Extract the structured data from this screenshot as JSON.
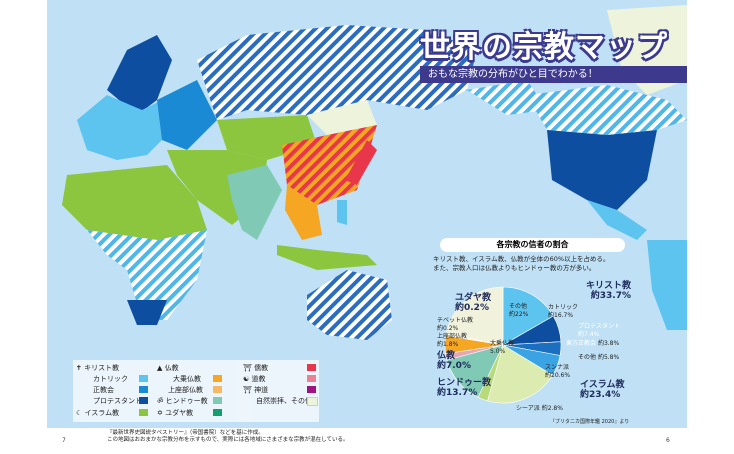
{
  "title": "世界の宗教マップ",
  "subtitle": "おもな宗教の分布がひと目でわかる！",
  "legend": {
    "christianity": {
      "label": "キリスト教",
      "icon": "cross-icon",
      "items": [
        {
          "label": "カトリック",
          "color": "#5cc4ef"
        },
        {
          "label": "正教会",
          "color": "#1a8ad4"
        },
        {
          "label": "プロテスタント",
          "color": "#0d4ea0"
        }
      ]
    },
    "islam": {
      "label": "イスラム教",
      "icon": "crescent-icon",
      "color": "#8cc63f"
    },
    "buddhism": {
      "label": "仏教",
      "icon": "stupa-icon",
      "items": [
        {
          "label": "大乗仏教",
          "color": "#f5a623"
        },
        {
          "label": "上座部仏教",
          "color": "#f7b866"
        }
      ]
    },
    "hinduism": {
      "label": "ヒンドゥー教",
      "icon": "om-icon",
      "color": "#7fc9b5"
    },
    "judaism": {
      "label": "ユダヤ教",
      "icon": "star-of-david-icon",
      "color": "#14a06e"
    },
    "confucianism": {
      "label": "儒教",
      "icon": "temple-icon",
      "color": "#e8374a"
    },
    "taoism": {
      "label": "道教",
      "icon": "yin-yang-icon",
      "color": "#ee8095"
    },
    "shinto": {
      "label": "神道",
      "icon": "torii-icon",
      "color": "#a0127f"
    },
    "other": {
      "label": "自然崇拝、その他",
      "color": "#eef4dc"
    }
  },
  "pie": {
    "heading": "各宗教の信者の割合",
    "note1": "キリスト教、イスラム教、仏教が全体の60%以上を占める。",
    "note2": "また、宗教人口は仏教よりもヒンドゥー教の方が多い。",
    "source": "『ブリタニカ国際年鑑 2020』より",
    "groups": [
      {
        "name": "キリスト教",
        "value": "約33.7%"
      },
      {
        "name": "イスラム教",
        "value": "約23.4%"
      },
      {
        "name": "ヒンドゥー教",
        "value": "約13.7%"
      },
      {
        "name": "仏教",
        "value": "約7.0%"
      },
      {
        "name": "ユダヤ教",
        "value": "約0.2%"
      }
    ],
    "slices": [
      {
        "label": "カトリック",
        "text": "約16.7%",
        "value": 16.7,
        "color": "#5cc4ef"
      },
      {
        "label": "プロテスタント",
        "text": "約7.4%",
        "value": 7.4,
        "color": "#0d4ea0"
      },
      {
        "label": "東方正教会",
        "text": "約3.8%",
        "value": 3.8,
        "color": "#1a6fc0"
      },
      {
        "label": "その他",
        "text": "約5.8%",
        "value": 5.8,
        "color": "#3aa3e3"
      },
      {
        "label": "スンナ派",
        "text": "約20.6%",
        "value": 20.6,
        "color": "#dcebb0"
      },
      {
        "label": "シーア派",
        "text": "約2.8%",
        "value": 2.8,
        "color": "#b8da7a"
      },
      {
        "label": "ヒンドゥー教",
        "text": "",
        "value": 13.7,
        "color": "#7fc9b5"
      },
      {
        "label": "上座部仏教",
        "text": "約1.8%",
        "value": 1.8,
        "color": "#e4a7b4"
      },
      {
        "label": "大乗仏教",
        "text": "5.0%",
        "value": 5.0,
        "color": "#f5a623"
      },
      {
        "label": "チベット仏教",
        "text": "約0.2%",
        "value": 0.2,
        "color": "#c07a3a"
      },
      {
        "label": "ユダヤ教",
        "text": "",
        "value": 0.2,
        "color": "#14a06e"
      },
      {
        "label": "その他",
        "text": "約22%",
        "value": 22,
        "color": "#f1f2dc"
      }
    ]
  },
  "footnote1": "『最新世界史図説タペストリー』（帝国書院）などを基に作成。",
  "footnote2": "この地図はおおまかな宗教分布を示すもので、実際には各地域にさまざまな宗教が混在している。",
  "page_left": "7",
  "page_right": "6"
}
